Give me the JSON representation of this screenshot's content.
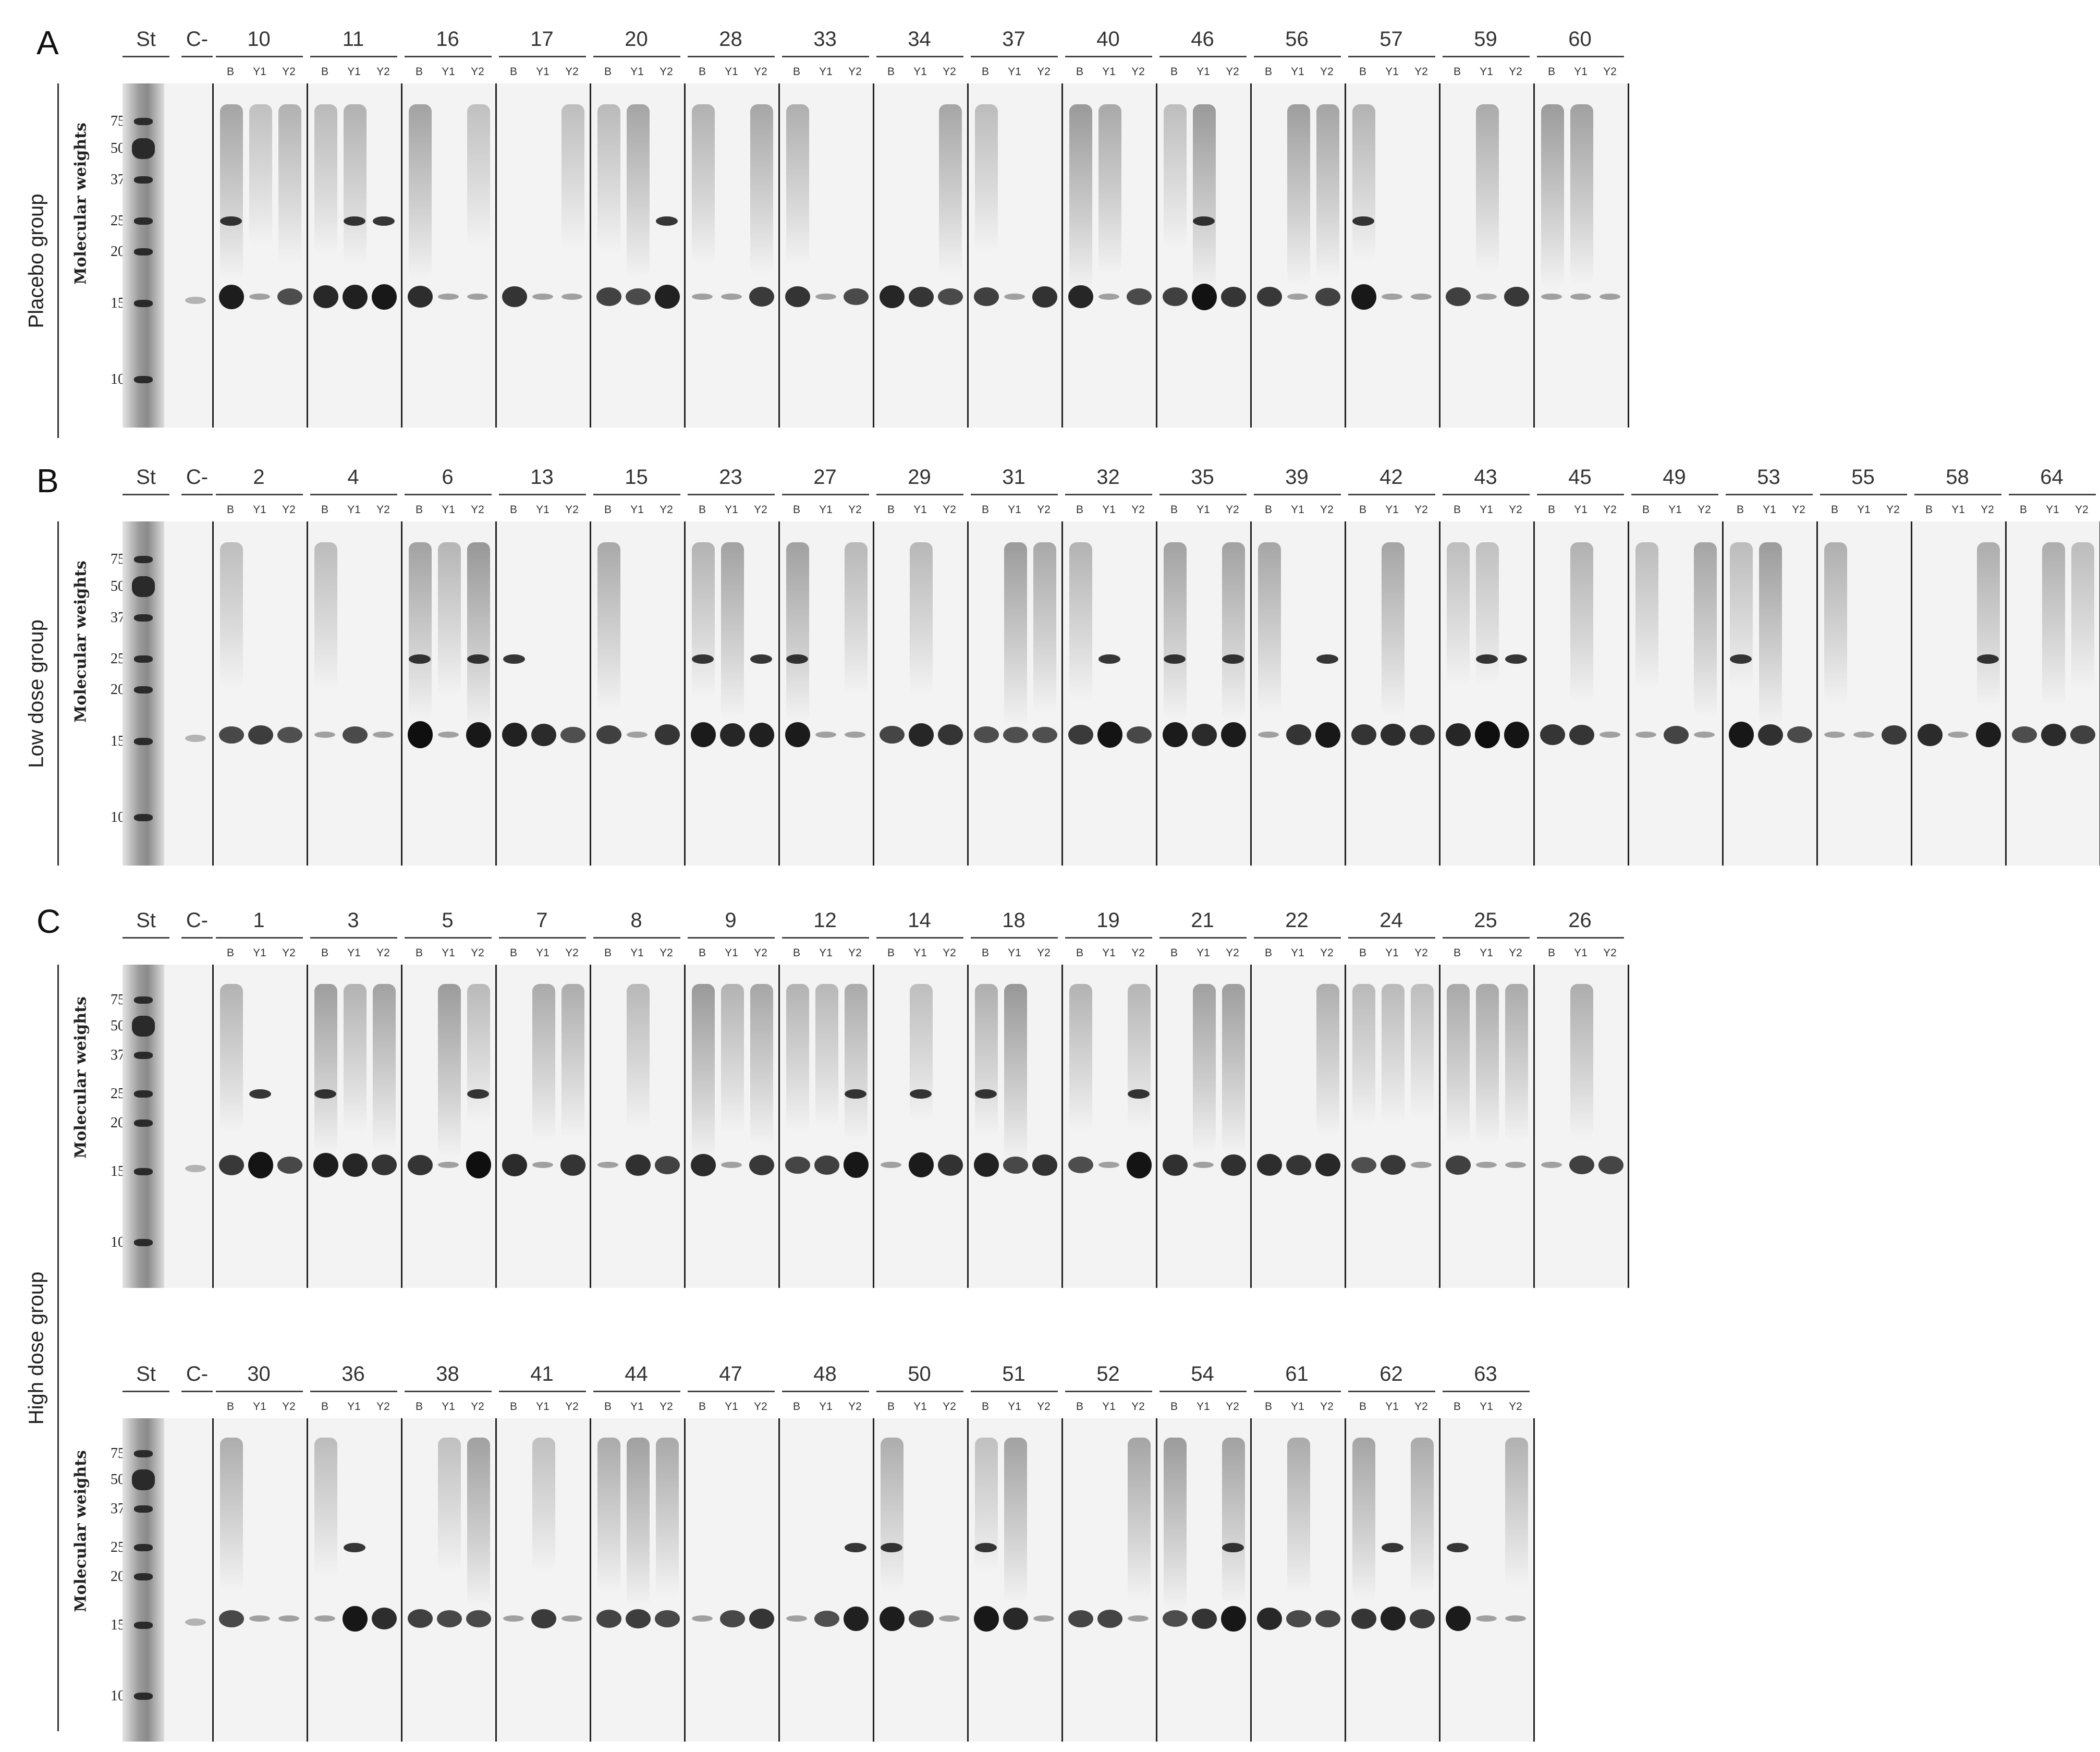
{
  "panels": [
    {
      "letter": "A",
      "group": "Placebo group",
      "mw_title": "Molecular weights",
      "lanes_heading": [
        "St",
        "C-"
      ],
      "sub_lanes": [
        "B",
        "Y1",
        "Y2"
      ],
      "mw_ticks": [
        "75",
        "50",
        "37",
        "25",
        "20",
        "15",
        "10"
      ],
      "samples": [
        "10",
        "11",
        "16",
        "17",
        "20",
        "28",
        "33",
        "34",
        "37",
        "40",
        "46",
        "56",
        "57",
        "59",
        "60"
      ]
    },
    {
      "letter": "B",
      "group": "Low dose group",
      "mw_title": "Molecular weights",
      "lanes_heading": [
        "St",
        "C-"
      ],
      "sub_lanes": [
        "B",
        "Y1",
        "Y2"
      ],
      "mw_ticks": [
        "75",
        "50",
        "37",
        "25",
        "20",
        "15",
        "10"
      ],
      "samples": [
        "2",
        "4",
        "6",
        "13",
        "15",
        "23",
        "27",
        "29",
        "31",
        "32",
        "35",
        "39",
        "42",
        "43",
        "45",
        "49",
        "53",
        "55",
        "58",
        "64"
      ]
    },
    {
      "letter": "C",
      "group": "High dose group",
      "mw_title": "Molecular weights",
      "lanes_heading": [
        "St",
        "C-"
      ],
      "sub_lanes": [
        "B",
        "Y1",
        "Y2"
      ],
      "mw_ticks": [
        "75",
        "50",
        "37",
        "25",
        "20",
        "15",
        "10"
      ],
      "samples": [
        "1",
        "3",
        "5",
        "7",
        "8",
        "9",
        "12",
        "14",
        "18",
        "19",
        "21",
        "22",
        "24",
        "25",
        "26"
      ]
    },
    {
      "letter": "",
      "group": "",
      "mw_title": "Molecular weights",
      "lanes_heading": [
        "St",
        "C-"
      ],
      "sub_lanes": [
        "B",
        "Y1",
        "Y2"
      ],
      "mw_ticks": [
        "75",
        "50",
        "37",
        "25",
        "20",
        "15",
        "10"
      ],
      "samples": [
        "30",
        "36",
        "38",
        "41",
        "44",
        "47",
        "48",
        "50",
        "51",
        "52",
        "54",
        "61",
        "62",
        "63"
      ]
    }
  ],
  "colors": {
    "gel_background": "#f3f3f3",
    "band": "#111111",
    "divider": "#222222"
  }
}
